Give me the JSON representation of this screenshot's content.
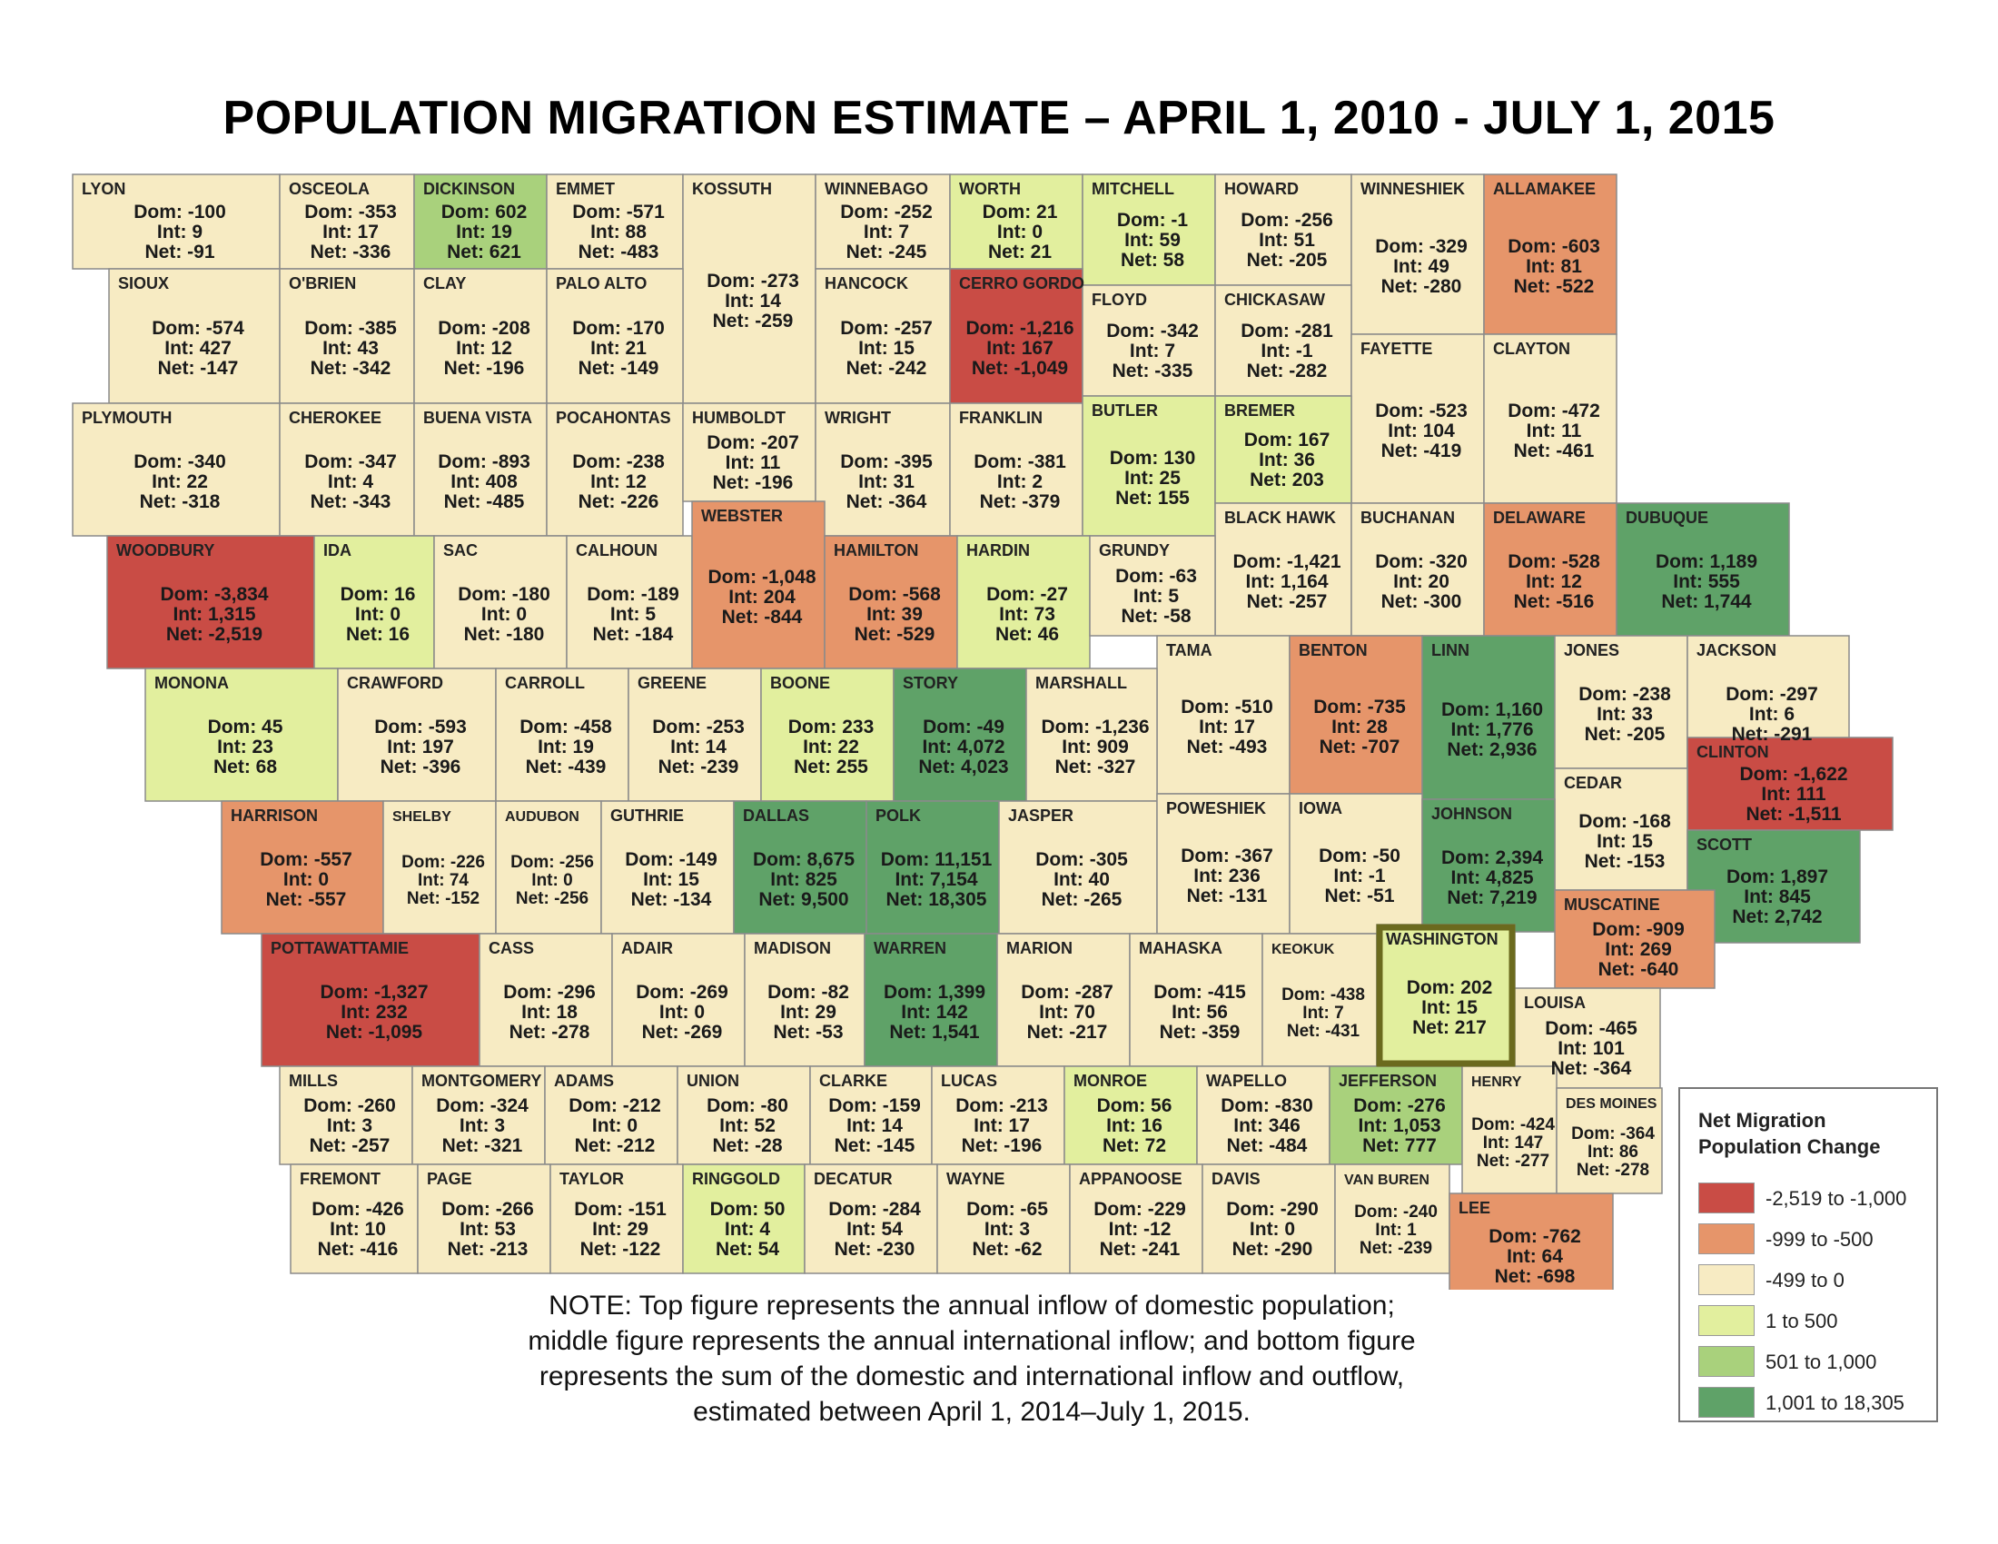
{
  "title": "POPULATION MIGRATION  ESTIMATE – APRIL 1, 2010 - JULY 1, 2015",
  "note": [
    "NOTE:  Top figure represents the annual inflow of domestic population;",
    "middle figure represents the annual international inflow; and bottom figure",
    "represents the sum of the domestic and international inflow and outflow,",
    "estimated between April 1, 2014–July 1, 2015."
  ],
  "prefixes": {
    "dom": "Dom: ",
    "int": "Int: ",
    "net": "Net: "
  },
  "legend": {
    "title_line1": "Net Migration",
    "title_line2": "Population Change",
    "bins": [
      {
        "label": "-2,519 to -1,000",
        "color": "#c94c45"
      },
      {
        "label": "-999 to -500",
        "color": "#e6956a"
      },
      {
        "label": "-499 to 0",
        "color": "#f7ebc3"
      },
      {
        "label": "1 to 500",
        "color": "#e2ef9e"
      },
      {
        "label": "501 to 1,000",
        "color": "#a9d17c"
      },
      {
        "label": "1,001 to 18,305",
        "color": "#5fa268"
      }
    ]
  },
  "highlight_county": "WASHINGTON",
  "chart_data": {
    "type": "choropleth",
    "title": "POPULATION MIGRATION  ESTIMATE – APRIL 1, 2010 - JULY 1, 2015",
    "legend_title": "Net Migration Population Change",
    "counties": [
      {
        "name": "LYON",
        "dom": "-100",
        "int": "9",
        "net": "-91"
      },
      {
        "name": "OSCEOLA",
        "dom": "-353",
        "int": "17",
        "net": "-336"
      },
      {
        "name": "DICKINSON",
        "dom": "602",
        "int": "19",
        "net": "621"
      },
      {
        "name": "EMMET",
        "dom": "-571",
        "int": "88",
        "net": "-483"
      },
      {
        "name": "KOSSUTH",
        "dom": "-273",
        "int": "14",
        "net": "-259"
      },
      {
        "name": "WINNEBAGO",
        "dom": "-252",
        "int": "7",
        "net": "-245"
      },
      {
        "name": "WORTH",
        "dom": "21",
        "int": "0",
        "net": "21"
      },
      {
        "name": "MITCHELL",
        "dom": "-1",
        "int": "59",
        "net": "58"
      },
      {
        "name": "HOWARD",
        "dom": "-256",
        "int": "51",
        "net": "-205"
      },
      {
        "name": "WINNESHIEK",
        "dom": "-329",
        "int": "49",
        "net": "-280"
      },
      {
        "name": "ALLAMAKEE",
        "dom": "-603",
        "int": "81",
        "net": "-522"
      },
      {
        "name": "SIOUX",
        "dom": "-574",
        "int": "427",
        "net": "-147"
      },
      {
        "name": "O'BRIEN",
        "dom": "-385",
        "int": "43",
        "net": "-342"
      },
      {
        "name": "CLAY",
        "dom": "-208",
        "int": "12",
        "net": "-196"
      },
      {
        "name": "PALO ALTO",
        "dom": "-170",
        "int": "21",
        "net": "-149"
      },
      {
        "name": "HANCOCK",
        "dom": "-257",
        "int": "15",
        "net": "-242"
      },
      {
        "name": "CERRO GORDO",
        "dom": "-1,216",
        "int": "167",
        "net": "-1,049"
      },
      {
        "name": "FLOYD",
        "dom": "-342",
        "int": "7",
        "net": "-335"
      },
      {
        "name": "CHICKASAW",
        "dom": "-281",
        "int": "-1",
        "net": "-282"
      },
      {
        "name": "FAYETTE",
        "dom": "-523",
        "int": "104",
        "net": "-419"
      },
      {
        "name": "CLAYTON",
        "dom": "-472",
        "int": "11",
        "net": "-461"
      },
      {
        "name": "PLYMOUTH",
        "dom": "-340",
        "int": "22",
        "net": "-318"
      },
      {
        "name": "CHEROKEE",
        "dom": "-347",
        "int": "4",
        "net": "-343"
      },
      {
        "name": "BUENA VISTA",
        "dom": "-893",
        "int": "408",
        "net": "-485"
      },
      {
        "name": "POCAHONTAS",
        "dom": "-238",
        "int": "12",
        "net": "-226"
      },
      {
        "name": "HUMBOLDT",
        "dom": "-207",
        "int": "11",
        "net": "-196"
      },
      {
        "name": "WRIGHT",
        "dom": "-395",
        "int": "31",
        "net": "-364"
      },
      {
        "name": "FRANKLIN",
        "dom": "-381",
        "int": "2",
        "net": "-379"
      },
      {
        "name": "BUTLER",
        "dom": "130",
        "int": "25",
        "net": "155"
      },
      {
        "name": "BREMER",
        "dom": "167",
        "int": "36",
        "net": "203"
      },
      {
        "name": "BLACK HAWK",
        "dom": "-1,421",
        "int": "1,164",
        "net": "-257"
      },
      {
        "name": "BUCHANAN",
        "dom": "-320",
        "int": "20",
        "net": "-300"
      },
      {
        "name": "DELAWARE",
        "dom": "-528",
        "int": "12",
        "net": "-516"
      },
      {
        "name": "DUBUQUE",
        "dom": "1,189",
        "int": "555",
        "net": "1,744"
      },
      {
        "name": "WOODBURY",
        "dom": "-3,834",
        "int": "1,315",
        "net": "-2,519"
      },
      {
        "name": "IDA",
        "dom": "16",
        "int": "0",
        "net": "16"
      },
      {
        "name": "SAC",
        "dom": "-180",
        "int": "0",
        "net": "-180"
      },
      {
        "name": "CALHOUN",
        "dom": "-189",
        "int": "5",
        "net": "-184"
      },
      {
        "name": "WEBSTER",
        "dom": "-1,048",
        "int": "204",
        "net": "-844"
      },
      {
        "name": "HAMILTON",
        "dom": "-568",
        "int": "39",
        "net": "-529"
      },
      {
        "name": "HARDIN",
        "dom": "-27",
        "int": "73",
        "net": "46"
      },
      {
        "name": "GRUNDY",
        "dom": "-63",
        "int": "5",
        "net": "-58"
      },
      {
        "name": "TAMA",
        "dom": "-510",
        "int": "17",
        "net": "-493"
      },
      {
        "name": "BENTON",
        "dom": "-735",
        "int": "28",
        "net": "-707"
      },
      {
        "name": "LINN",
        "dom": "1,160",
        "int": "1,776",
        "net": "2,936"
      },
      {
        "name": "JONES",
        "dom": "-238",
        "int": "33",
        "net": "-205"
      },
      {
        "name": "JACKSON",
        "dom": "-297",
        "int": "6",
        "net": "-291"
      },
      {
        "name": "MONONA",
        "dom": "45",
        "int": "23",
        "net": "68"
      },
      {
        "name": "CRAWFORD",
        "dom": "-593",
        "int": "197",
        "net": "-396"
      },
      {
        "name": "CARROLL",
        "dom": "-458",
        "int": "19",
        "net": "-439"
      },
      {
        "name": "GREENE",
        "dom": "-253",
        "int": "14",
        "net": "-239"
      },
      {
        "name": "BOONE",
        "dom": "233",
        "int": "22",
        "net": "255"
      },
      {
        "name": "STORY",
        "dom": "-49",
        "int": "4,072",
        "net": "4,023"
      },
      {
        "name": "MARSHALL",
        "dom": "-1,236",
        "int": "909",
        "net": "-327"
      },
      {
        "name": "CLINTON",
        "dom": "-1,622",
        "int": "111",
        "net": "-1,511"
      },
      {
        "name": "CEDAR",
        "dom": "-168",
        "int": "15",
        "net": "-153"
      },
      {
        "name": "HARRISON",
        "dom": "-557",
        "int": "0",
        "net": "-557"
      },
      {
        "name": "SHELBY",
        "dom": "-226",
        "int": "74",
        "net": "-152"
      },
      {
        "name": "AUDUBON",
        "dom": "-256",
        "int": "0",
        "net": "-256"
      },
      {
        "name": "GUTHRIE",
        "dom": "-149",
        "int": "15",
        "net": "-134"
      },
      {
        "name": "DALLAS",
        "dom": "8,675",
        "int": "825",
        "net": "9,500"
      },
      {
        "name": "POLK",
        "dom": "11,151",
        "int": "7,154",
        "net": "18,305"
      },
      {
        "name": "JASPER",
        "dom": "-305",
        "int": "40",
        "net": "-265"
      },
      {
        "name": "POWESHIEK",
        "dom": "-367",
        "int": "236",
        "net": "-131"
      },
      {
        "name": "IOWA",
        "dom": "-50",
        "int": "-1",
        "net": "-51"
      },
      {
        "name": "JOHNSON",
        "dom": "2,394",
        "int": "4,825",
        "net": "7,219"
      },
      {
        "name": "SCOTT",
        "dom": "1,897",
        "int": "845",
        "net": "2,742"
      },
      {
        "name": "MUSCATINE",
        "dom": "-909",
        "int": "269",
        "net": "-640"
      },
      {
        "name": "POTTAWATTAMIE",
        "dom": "-1,327",
        "int": "232",
        "net": "-1,095"
      },
      {
        "name": "CASS",
        "dom": "-296",
        "int": "18",
        "net": "-278"
      },
      {
        "name": "ADAIR",
        "dom": "-269",
        "int": "0",
        "net": "-269"
      },
      {
        "name": "MADISON",
        "dom": "-82",
        "int": "29",
        "net": "-53"
      },
      {
        "name": "WARREN",
        "dom": "1,399",
        "int": "142",
        "net": "1,541"
      },
      {
        "name": "MARION",
        "dom": "-287",
        "int": "70",
        "net": "-217"
      },
      {
        "name": "MAHASKA",
        "dom": "-415",
        "int": "56",
        "net": "-359"
      },
      {
        "name": "KEOKUK",
        "dom": "-438",
        "int": "7",
        "net": "-431"
      },
      {
        "name": "WASHINGTON",
        "dom": "202",
        "int": "15",
        "net": "217"
      },
      {
        "name": "LOUISA",
        "dom": "-465",
        "int": "101",
        "net": "-364"
      },
      {
        "name": "MILLS",
        "dom": "-260",
        "int": "3",
        "net": "-257"
      },
      {
        "name": "MONTGOMERY",
        "dom": "-324",
        "int": "3",
        "net": "-321"
      },
      {
        "name": "ADAMS",
        "dom": "-212",
        "int": "0",
        "net": "-212"
      },
      {
        "name": "UNION",
        "dom": "-80",
        "int": "52",
        "net": "-28"
      },
      {
        "name": "CLARKE",
        "dom": "-159",
        "int": "14",
        "net": "-145"
      },
      {
        "name": "LUCAS",
        "dom": "-213",
        "int": "17",
        "net": "-196"
      },
      {
        "name": "MONROE",
        "dom": "56",
        "int": "16",
        "net": "72"
      },
      {
        "name": "WAPELLO",
        "dom": "-830",
        "int": "346",
        "net": "-484"
      },
      {
        "name": "JEFFERSON",
        "dom": "-276",
        "int": "1,053",
        "net": "777"
      },
      {
        "name": "HENRY",
        "dom": "-424",
        "int": "147",
        "net": "-277"
      },
      {
        "name": "DES MOINES",
        "dom": "-364",
        "int": "86",
        "net": "-278"
      },
      {
        "name": "FREMONT",
        "dom": "-426",
        "int": "10",
        "net": "-416"
      },
      {
        "name": "PAGE",
        "dom": "-266",
        "int": "53",
        "net": "-213"
      },
      {
        "name": "TAYLOR",
        "dom": "-151",
        "int": "29",
        "net": "-122"
      },
      {
        "name": "RINGGOLD",
        "dom": "50",
        "int": "4",
        "net": "54"
      },
      {
        "name": "DECATUR",
        "dom": "-284",
        "int": "54",
        "net": "-230"
      },
      {
        "name": "WAYNE",
        "dom": "-65",
        "int": "3",
        "net": "-62"
      },
      {
        "name": "APPANOOSE",
        "dom": "-229",
        "int": "-12",
        "net": "-241"
      },
      {
        "name": "DAVIS",
        "dom": "-290",
        "int": "0",
        "net": "-290"
      },
      {
        "name": "VAN BUREN",
        "dom": "-240",
        "int": "1",
        "net": "-239"
      },
      {
        "name": "LEE",
        "dom": "-762",
        "int": "64",
        "net": "-698"
      }
    ]
  }
}
